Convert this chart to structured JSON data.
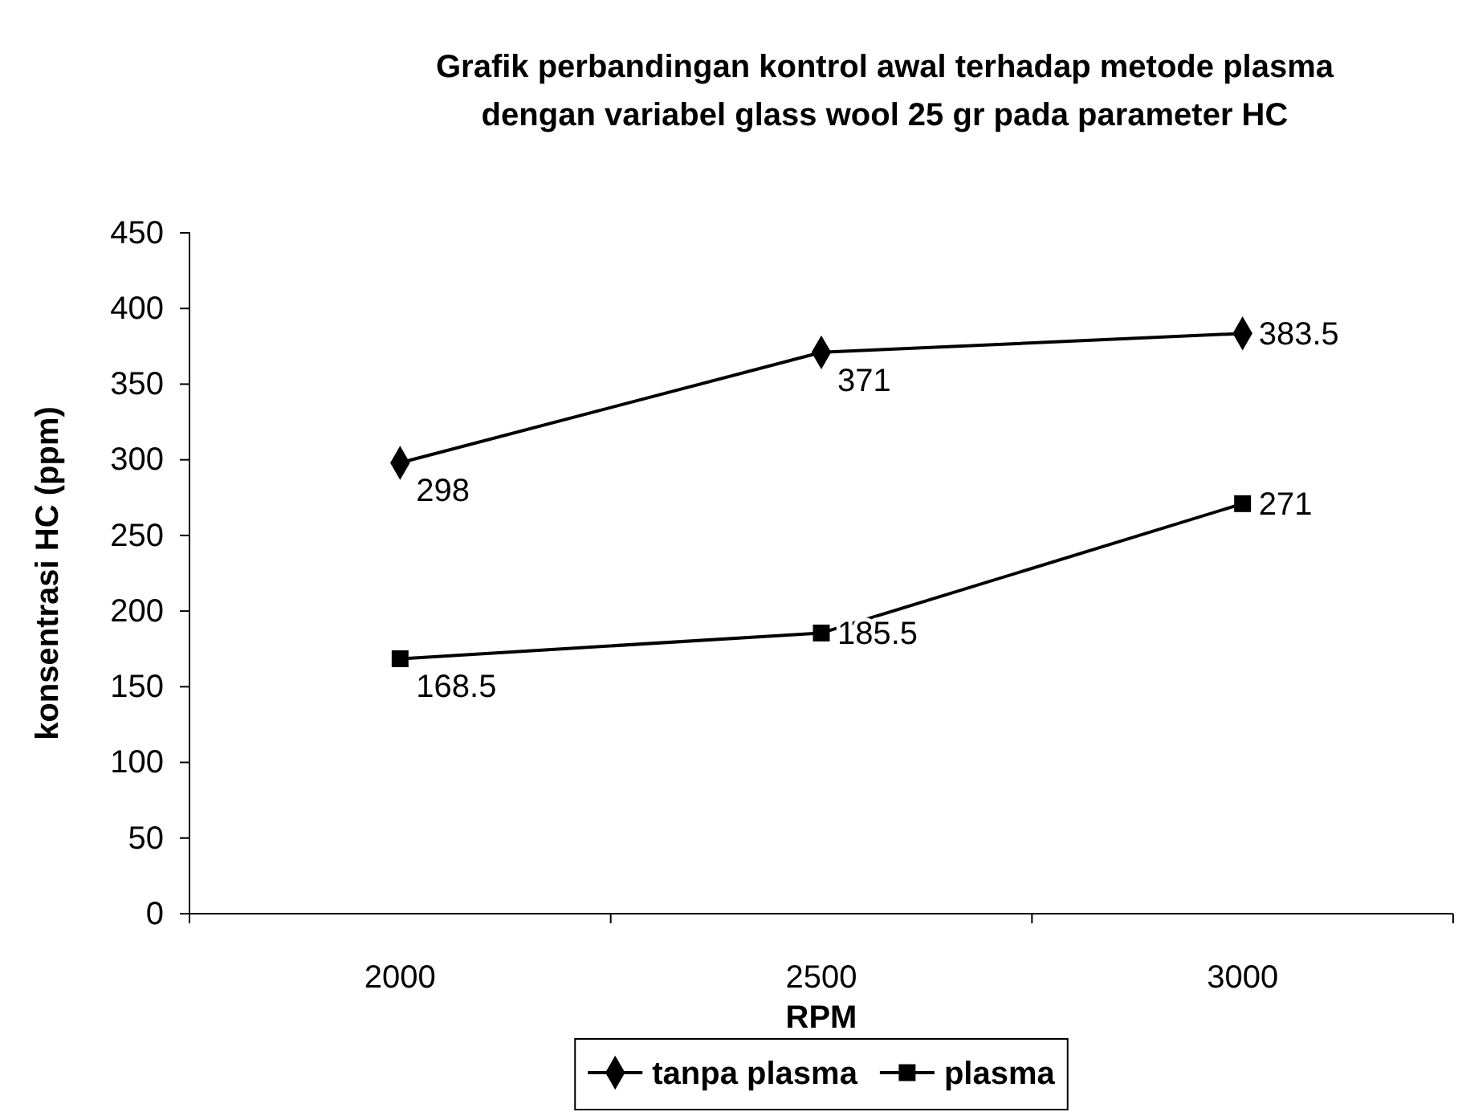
{
  "chart_data": {
    "type": "line",
    "title": "Grafik perbandingan kontrol awal terhadap metode plasma\ndengan variabel glass wool 25 gr pada parameter HC",
    "xlabel": "RPM",
    "ylabel": "konsentrasi HC (ppm)",
    "categories": [
      "2000",
      "2500",
      "3000"
    ],
    "series": [
      {
        "name": "tanpa plasma",
        "color": "#000000",
        "marker": "diamond",
        "values": [
          298,
          371,
          383.5
        ]
      },
      {
        "name": "plasma",
        "color": "#000000",
        "marker": "square",
        "values": [
          168.5,
          185.5,
          271
        ]
      }
    ],
    "ylim": [
      0,
      450
    ],
    "yticks": [
      0,
      50,
      100,
      150,
      200,
      250,
      300,
      350,
      400,
      450
    ],
    "data_labels": true,
    "legend": "bottom",
    "grid": false,
    "line_style": "solid"
  }
}
